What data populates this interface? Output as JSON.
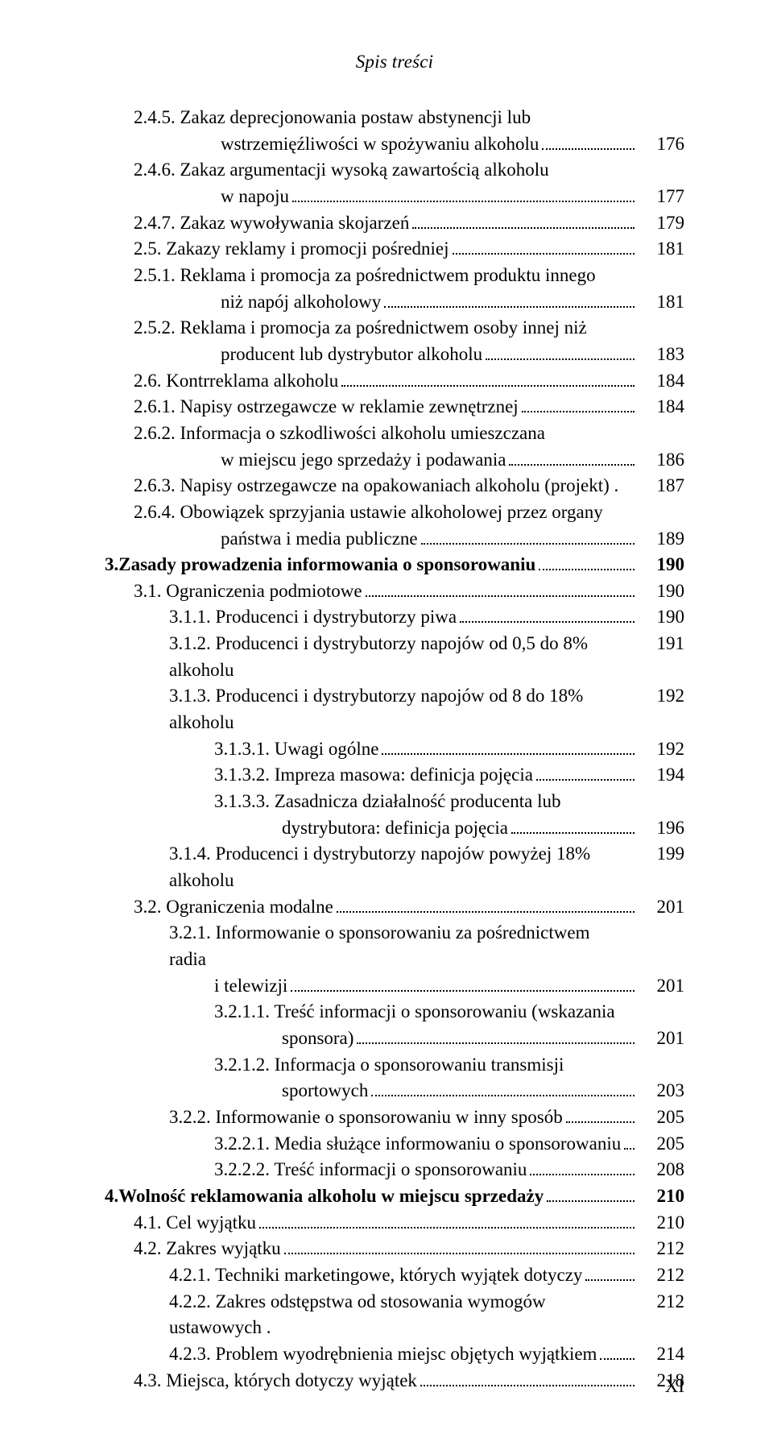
{
  "running_head": "Spis treści",
  "page_number": "XI",
  "colors": {
    "text": "#000000",
    "background": "#ffffff"
  },
  "typography": {
    "body_fontsize_pt": 11,
    "header_italic": true
  },
  "rows": [
    {
      "indent": "i1",
      "text": "2.4.5. Zakaz deprecjonowania postaw abstynencji lub",
      "pg": "",
      "dots": false
    },
    {
      "indent": "i2c",
      "text": "wstrzemięźliwości w spożywaniu alkoholu",
      "pg": "176",
      "dots": true
    },
    {
      "indent": "i1",
      "text": "2.4.6. Zakaz argumentacji wysoką zawartością alkoholu",
      "pg": "",
      "dots": false
    },
    {
      "indent": "i2c",
      "text": "w napoju",
      "pg": "177",
      "dots": true
    },
    {
      "indent": "i1",
      "text": "2.4.7. Zakaz wywoływania skojarzeń",
      "pg": "179",
      "dots": true
    },
    {
      "indent": "i1",
      "text": "2.5. Zakazy reklamy i promocji pośredniej",
      "pg": "181",
      "dots": true
    },
    {
      "indent": "i1",
      "text": "2.5.1. Reklama i promocja za pośrednictwem produktu innego",
      "pg": "",
      "dots": false
    },
    {
      "indent": "i2c",
      "text": "niż napój alkoholowy",
      "pg": "181",
      "dots": true
    },
    {
      "indent": "i1",
      "text": "2.5.2. Reklama i promocja za pośrednictwem osoby innej niż",
      "pg": "",
      "dots": false
    },
    {
      "indent": "i2c",
      "text": "producent lub dystrybutor alkoholu",
      "pg": "183",
      "dots": true
    },
    {
      "indent": "i1",
      "text": "2.6. Kontrreklama alkoholu",
      "pg": "184",
      "dots": true
    },
    {
      "indent": "i1",
      "text": "2.6.1. Napisy ostrzegawcze w reklamie zewnętrznej",
      "pg": "184",
      "dots": true
    },
    {
      "indent": "i1",
      "text": "2.6.2. Informacja o szkodliwości alkoholu umieszczana",
      "pg": "",
      "dots": false
    },
    {
      "indent": "i2c",
      "text": "w miejscu jego sprzedaży i podawania",
      "pg": "186",
      "dots": true
    },
    {
      "indent": "i1",
      "text": "2.6.3. Napisy ostrzegawcze na opakowaniach alkoholu (projekt) .",
      "pg": "187",
      "dots": false
    },
    {
      "indent": "i1",
      "text": "2.6.4. Obowiązek sprzyjania ustawie alkoholowej przez organy",
      "pg": "",
      "dots": false
    },
    {
      "indent": "i2c",
      "text": "państwa i media publiczne",
      "pg": "189",
      "dots": true
    },
    {
      "indent": "i0",
      "text": "3.   Zasady prowadzenia informowania o sponsorowaniu",
      "pg": "190",
      "dots": true,
      "bold": true,
      "lead": "3.   ",
      "label": "Zasady prowadzenia informowania o sponsorowaniu"
    },
    {
      "indent": "i1b",
      "text": "3.1. Ograniczenia podmiotowe",
      "pg": "190",
      "dots": true
    },
    {
      "indent": "i2b",
      "text": "3.1.1. Producenci i dystrybutorzy piwa",
      "pg": "190",
      "dots": true
    },
    {
      "indent": "i2b",
      "text": "3.1.2. Producenci i dystrybutorzy napojów od 0,5 do 8% alkoholu",
      "pg": "191",
      "dots": false
    },
    {
      "indent": "i2b",
      "text": "3.1.3. Producenci i dystrybutorzy napojów od 8 do 18% alkoholu",
      "pg": "192",
      "dots": false
    },
    {
      "indent": "i3b",
      "text": "3.1.3.1. Uwagi ogólne",
      "pg": "192",
      "dots": true
    },
    {
      "indent": "i3b",
      "text": "3.1.3.2. Impreza masowa: definicja pojęcia",
      "pg": "194",
      "dots": true
    },
    {
      "indent": "i3b",
      "text": "3.1.3.3. Zasadnicza działalność producenta lub",
      "pg": "",
      "dots": false
    },
    {
      "indent": "i3bc",
      "text": "dystrybutora: definicja pojęcia",
      "pg": "196",
      "dots": true
    },
    {
      "indent": "i2b",
      "text": "3.1.4. Producenci i dystrybutorzy napojów powyżej 18% alkoholu",
      "pg": "199",
      "dots": false
    },
    {
      "indent": "i1b",
      "text": "3.2. Ograniczenia modalne",
      "pg": "201",
      "dots": true
    },
    {
      "indent": "i2b",
      "text": "3.2.1. Informowanie o sponsorowaniu za pośrednictwem radia",
      "pg": "",
      "dots": false
    },
    {
      "indent": "i2bc",
      "text": "i telewizji",
      "pg": "201",
      "dots": true
    },
    {
      "indent": "i3b",
      "text": "3.2.1.1. Treść informacji o sponsorowaniu (wskazania",
      "pg": "",
      "dots": false
    },
    {
      "indent": "i3bc",
      "text": "sponsora)",
      "pg": "201",
      "dots": true
    },
    {
      "indent": "i3b",
      "text": "3.2.1.2. Informacja o sponsorowaniu transmisji",
      "pg": "",
      "dots": false
    },
    {
      "indent": "i3bc",
      "text": "sportowych",
      "pg": "203",
      "dots": true
    },
    {
      "indent": "i2b",
      "text": "3.2.2. Informowanie o sponsorowaniu w inny sposób",
      "pg": "205",
      "dots": true
    },
    {
      "indent": "i3b",
      "text": "3.2.2.1. Media służące informowaniu o sponsorowaniu",
      "pg": "205",
      "dots": true
    },
    {
      "indent": "i3b",
      "text": "3.2.2.2. Treść informacji o sponsorowaniu",
      "pg": "208",
      "dots": true
    },
    {
      "indent": "i0",
      "text": "",
      "pg": "210",
      "dots": true,
      "bold": true,
      "lead": "4.   ",
      "label": "Wolność reklamowania alkoholu w miejscu sprzedaży"
    },
    {
      "indent": "i1b",
      "text": "4.1. Cel wyjątku",
      "pg": "210",
      "dots": true
    },
    {
      "indent": "i1b",
      "text": "4.2. Zakres wyjątku",
      "pg": "212",
      "dots": true
    },
    {
      "indent": "i2b",
      "text": "4.2.1. Techniki marketingowe, których wyjątek dotyczy",
      "pg": "212",
      "dots": true
    },
    {
      "indent": "i2b",
      "text": "4.2.2. Zakres odstępstwa od stosowania wymogów ustawowych .",
      "pg": "212",
      "dots": false
    },
    {
      "indent": "i2b",
      "text": "4.2.3. Problem wyodrębnienia miejsc objętych wyjątkiem",
      "pg": "214",
      "dots": true
    },
    {
      "indent": "i1b",
      "text": "4.3. Miejsca, których dotyczy wyjątek",
      "pg": "218",
      "dots": true
    }
  ]
}
